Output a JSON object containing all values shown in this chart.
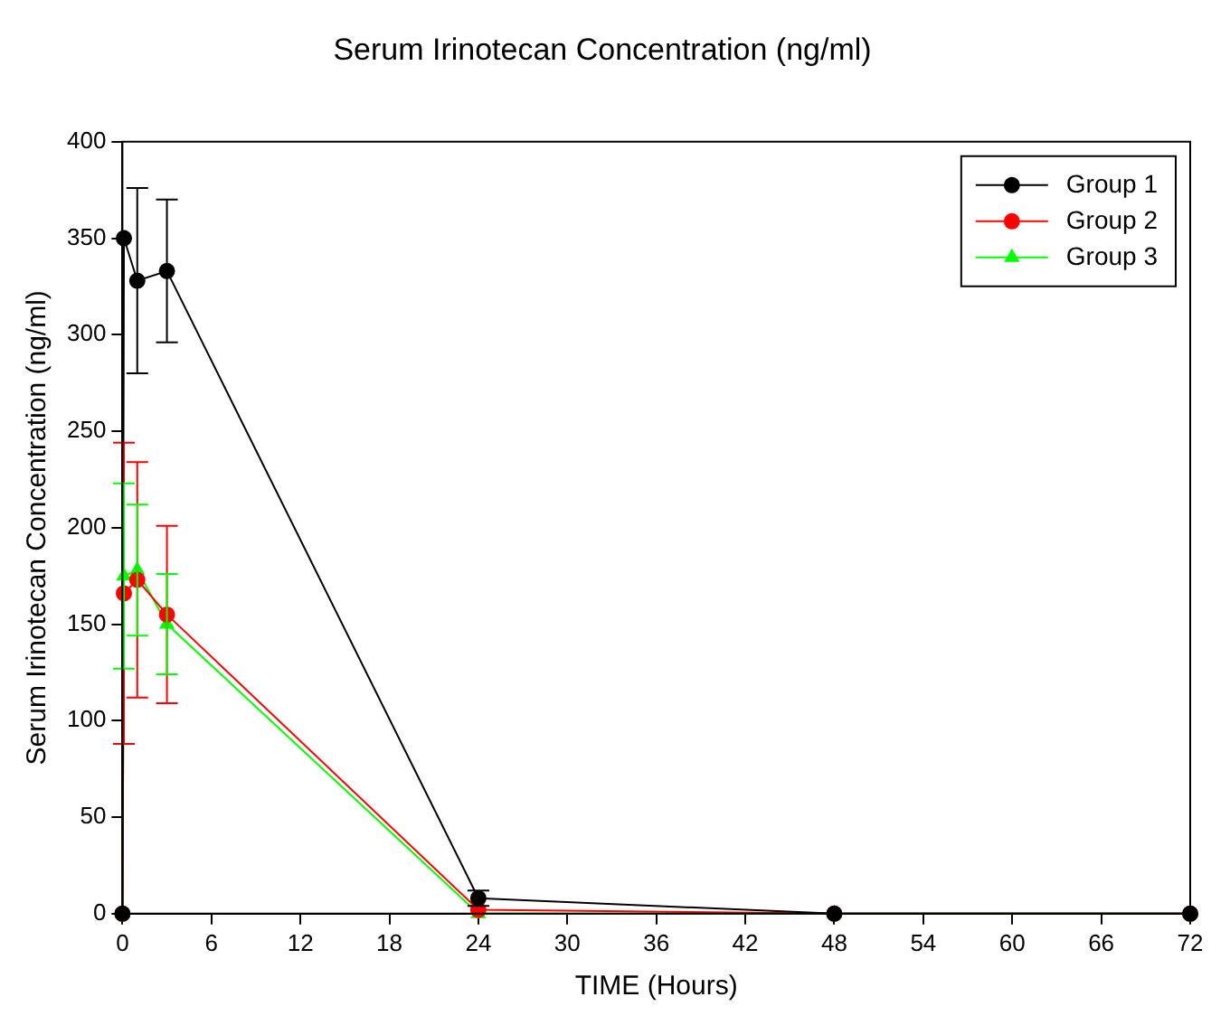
{
  "chart_data": {
    "type": "line",
    "title": "Serum Irinotecan Concentration (ng/ml)",
    "xlabel": "TIME (Hours)",
    "ylabel": "Serum Irinotecan Concentration (ng/ml)",
    "x": [
      0,
      0.1,
      1,
      3,
      24,
      48,
      72
    ],
    "series": [
      {
        "name": "Group 1",
        "color": "#000000",
        "marker": "circle",
        "values": [
          0,
          350,
          328,
          333,
          8,
          0,
          0
        ],
        "errors": [
          null,
          null,
          48,
          37,
          4,
          null,
          null
        ]
      },
      {
        "name": "Group 2",
        "color": "#ff0000",
        "marker": "circle",
        "values": [
          0,
          166,
          173,
          155,
          2,
          0,
          0
        ],
        "errors": [
          null,
          78,
          61,
          46,
          null,
          null,
          null
        ]
      },
      {
        "name": "Group 3",
        "color": "#00ff00",
        "marker": "triangle",
        "values": [
          0,
          175,
          178,
          150,
          0,
          0,
          0
        ],
        "errors": [
          null,
          48,
          34,
          26,
          null,
          null,
          null
        ]
      }
    ],
    "xlim": [
      0,
      72
    ],
    "xticks": [
      0,
      6,
      12,
      18,
      24,
      30,
      36,
      42,
      48,
      54,
      60,
      66,
      72
    ],
    "ylim": [
      0,
      400
    ],
    "yticks": [
      0,
      50,
      100,
      150,
      200,
      250,
      300,
      350,
      400
    ],
    "grid": false,
    "legend": "top right",
    "line_style": "solid"
  }
}
